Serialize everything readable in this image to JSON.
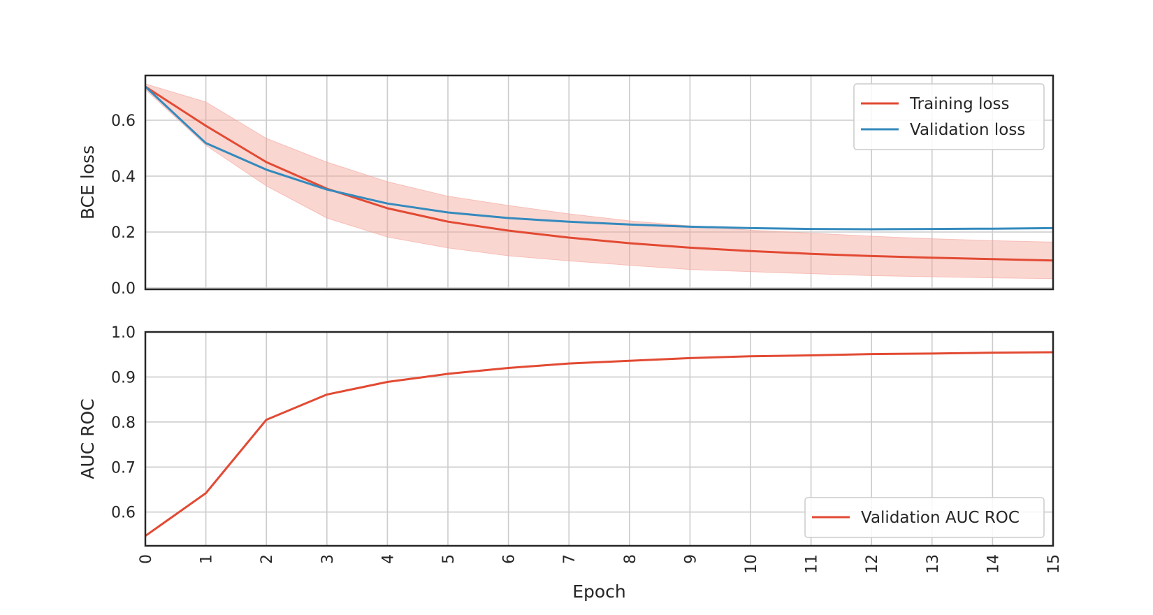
{
  "colors": {
    "training": "#e24a33",
    "validation": "#348abd",
    "band": "#f4a39a",
    "grid": "#cccccc",
    "frame": "#262626"
  },
  "chart_data": [
    {
      "type": "line",
      "ylabel": "BCE loss",
      "xlabel": "",
      "xlim": [
        0,
        15
      ],
      "ylim": [
        -0.005,
        0.76
      ],
      "y_ticks": [
        "0.0",
        "0.2",
        "0.4",
        "0.6"
      ],
      "x_ticks": [
        0,
        1,
        2,
        3,
        4,
        5,
        6,
        7,
        8,
        9,
        10,
        11,
        12,
        13,
        14,
        15
      ],
      "grid": true,
      "legend_position": "top-right",
      "x": [
        0,
        1,
        2,
        3,
        4,
        5,
        6,
        7,
        8,
        9,
        10,
        11,
        12,
        13,
        14,
        15
      ],
      "series": [
        {
          "name": "Training loss",
          "color": "#e24a33",
          "values": [
            0.72,
            0.58,
            0.45,
            0.355,
            0.285,
            0.237,
            0.205,
            0.18,
            0.16,
            0.144,
            0.132,
            0.122,
            0.114,
            0.108,
            0.103,
            0.098
          ],
          "band_upper": [
            0.73,
            0.665,
            0.535,
            0.45,
            0.38,
            0.328,
            0.295,
            0.265,
            0.24,
            0.222,
            0.207,
            0.196,
            0.185,
            0.176,
            0.169,
            0.164
          ],
          "band_lower": [
            0.71,
            0.51,
            0.365,
            0.25,
            0.182,
            0.143,
            0.115,
            0.097,
            0.081,
            0.066,
            0.058,
            0.051,
            0.044,
            0.04,
            0.036,
            0.033
          ]
        },
        {
          "name": "Validation loss",
          "color": "#348abd",
          "values": [
            0.72,
            0.518,
            0.423,
            0.352,
            0.302,
            0.27,
            0.25,
            0.237,
            0.227,
            0.219,
            0.214,
            0.211,
            0.21,
            0.211,
            0.212,
            0.214
          ]
        }
      ]
    },
    {
      "type": "line",
      "ylabel": "AUC ROC",
      "xlabel": "Epoch",
      "xlim": [
        0,
        15
      ],
      "ylim": [
        0.525,
        1.0
      ],
      "y_ticks": [
        "0.6",
        "0.7",
        "0.8",
        "0.9",
        "1.0"
      ],
      "x_ticks": [
        0,
        1,
        2,
        3,
        4,
        5,
        6,
        7,
        8,
        9,
        10,
        11,
        12,
        13,
        14,
        15
      ],
      "grid": true,
      "legend_position": "bottom-right",
      "x": [
        0,
        1,
        2,
        3,
        4,
        5,
        6,
        7,
        8,
        9,
        10,
        11,
        12,
        13,
        14,
        15
      ],
      "series": [
        {
          "name": "Validation AUC ROC",
          "color": "#e24a33",
          "values": [
            0.547,
            0.642,
            0.805,
            0.861,
            0.889,
            0.907,
            0.92,
            0.93,
            0.936,
            0.942,
            0.946,
            0.948,
            0.951,
            0.952,
            0.954,
            0.955
          ]
        }
      ]
    }
  ]
}
